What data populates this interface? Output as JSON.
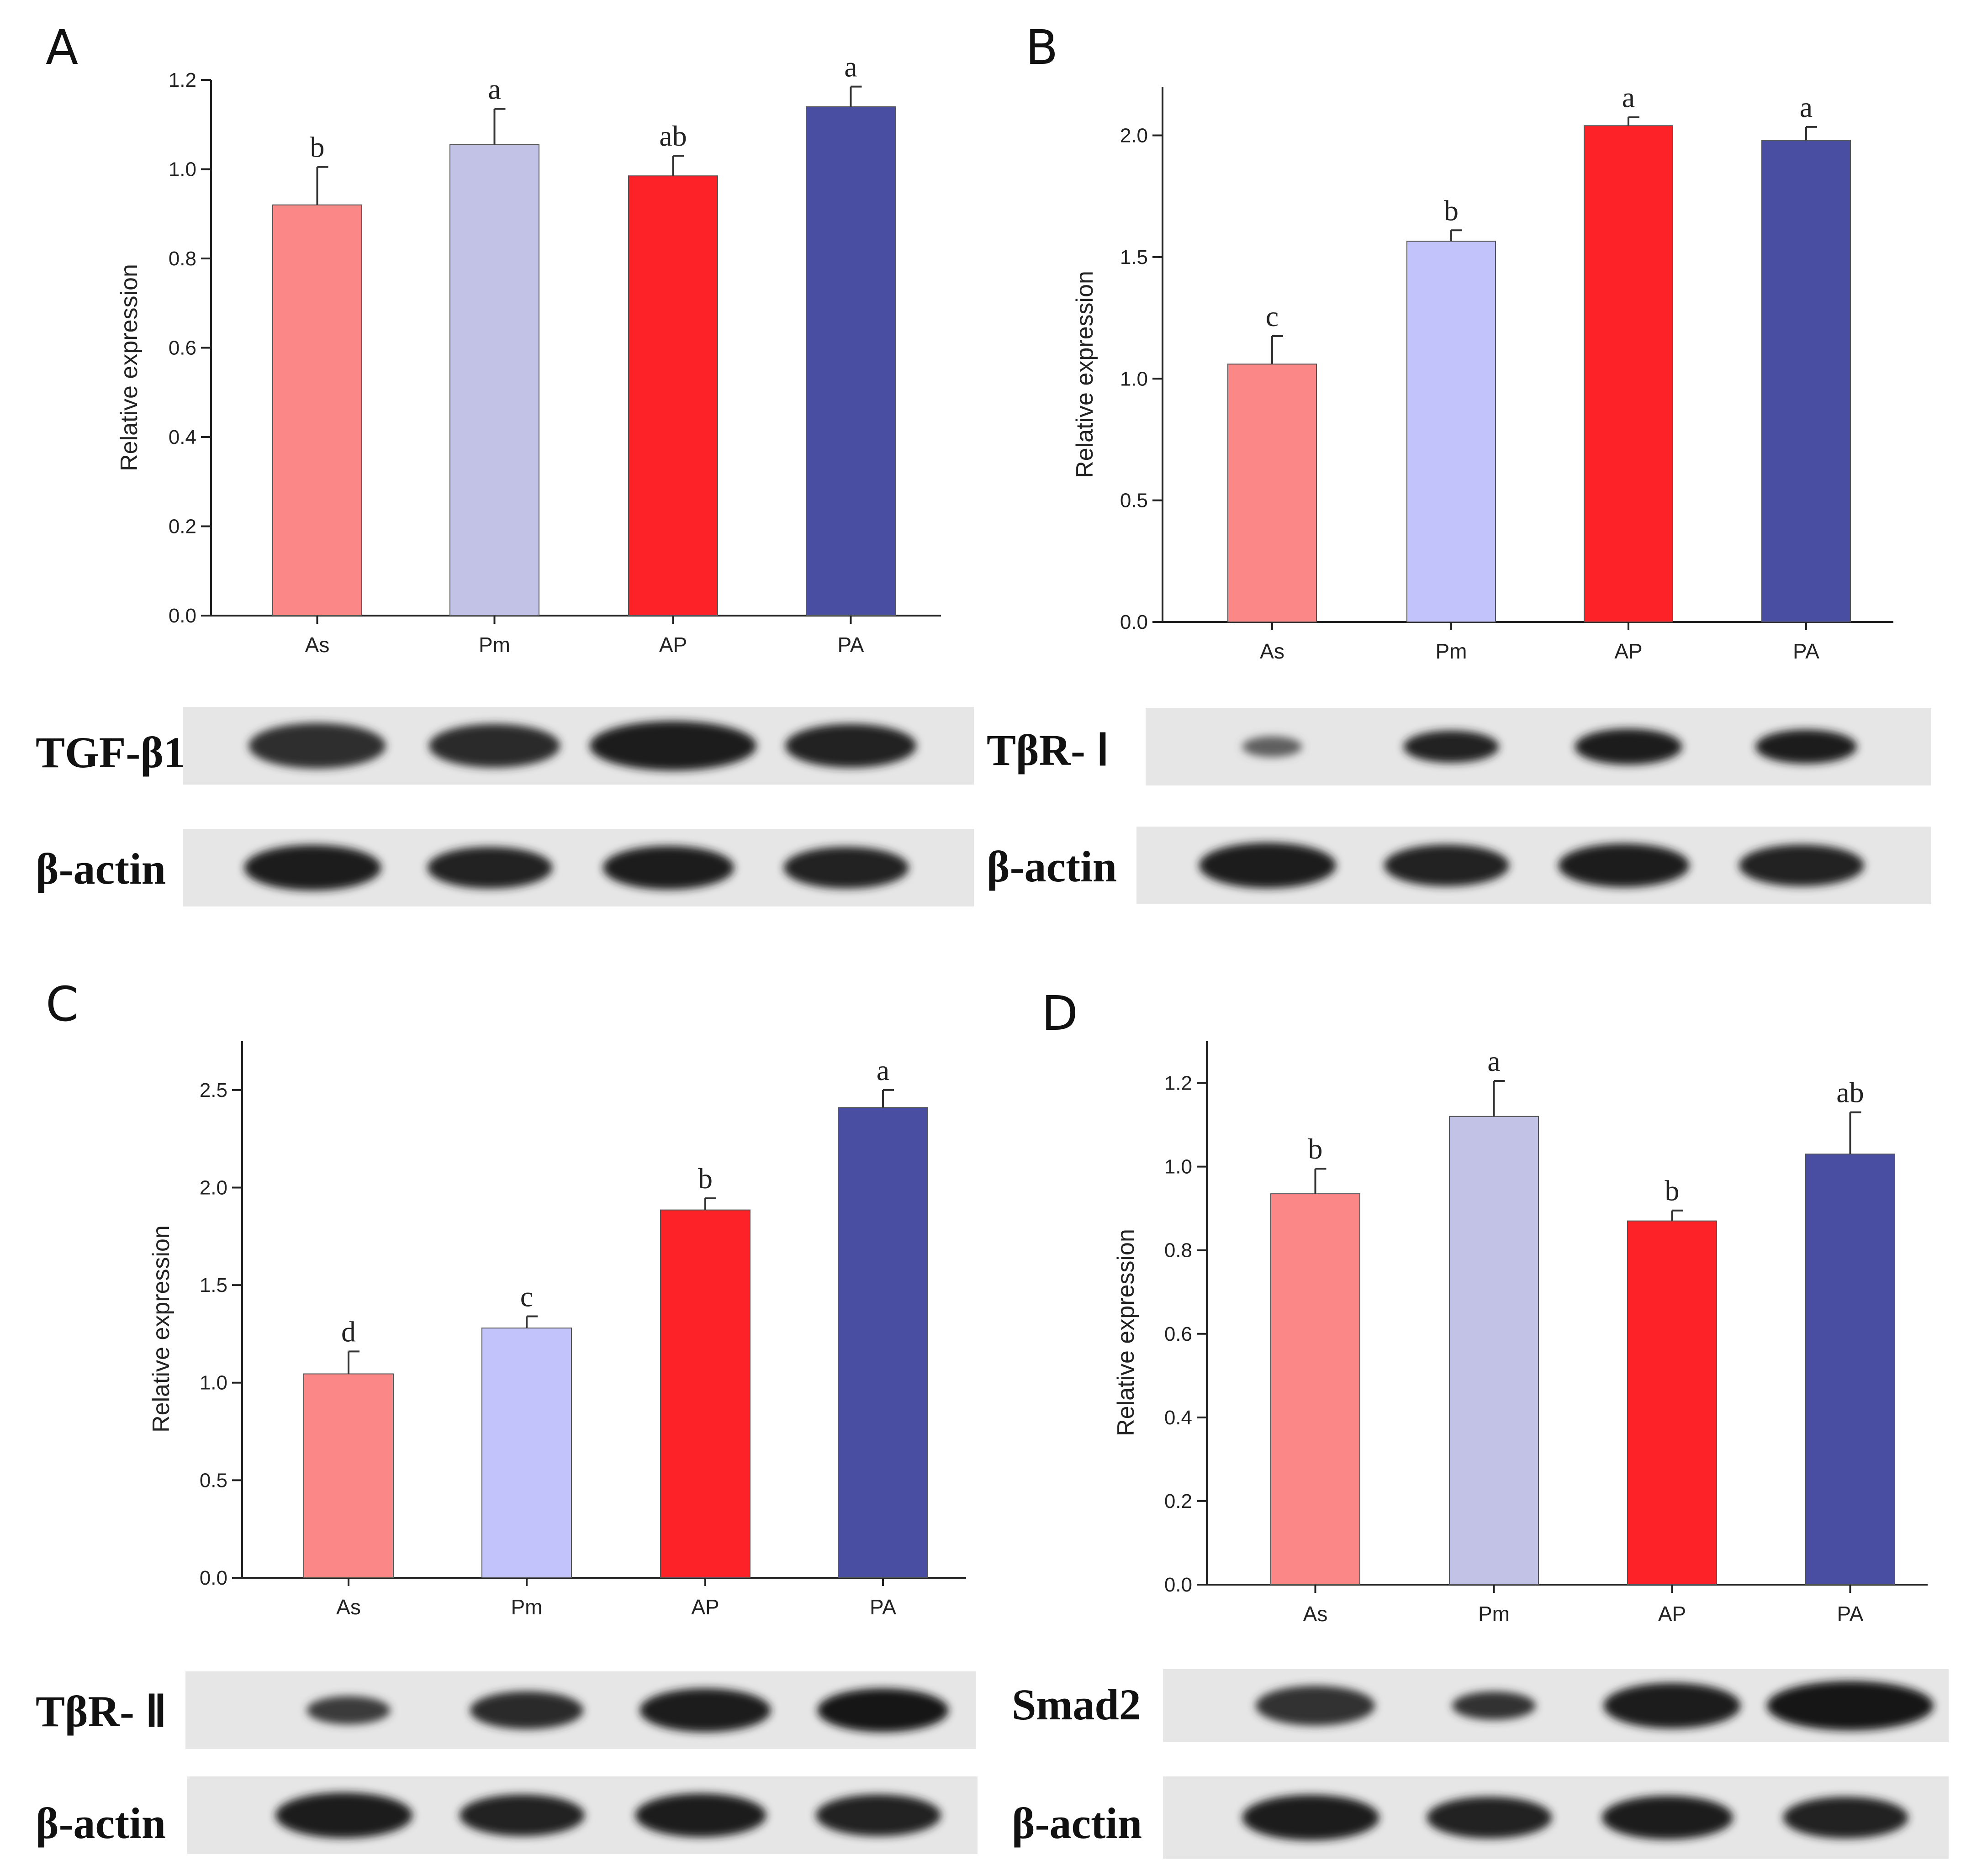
{
  "chart_data": [
    {
      "panel": "A",
      "type": "bar",
      "categories": [
        "As",
        "Pm",
        "AP",
        "PA"
      ],
      "values": [
        0.92,
        1.055,
        0.985,
        1.14
      ],
      "errors": [
        0.085,
        0.08,
        0.045,
        0.045
      ],
      "significance": [
        "b",
        "a",
        "ab",
        "a"
      ],
      "colors": [
        "#fc8787",
        "#c2c2e6",
        "#fc2228",
        "#4a4ea3"
      ],
      "ylabel": "Relative expression",
      "ylim": [
        0,
        1.2
      ],
      "yticks": [
        "0.0",
        "0.2",
        "0.4",
        "0.6",
        "0.8",
        "1.0",
        "1.2"
      ],
      "blot": {
        "target": "TGF-β1",
        "control": "β-actin"
      }
    },
    {
      "panel": "B",
      "type": "bar",
      "categories": [
        "As",
        "Pm",
        "AP",
        "PA"
      ],
      "values": [
        1.06,
        1.565,
        2.04,
        1.98
      ],
      "errors": [
        0.115,
        0.045,
        0.035,
        0.055
      ],
      "significance": [
        "c",
        "b",
        "a",
        "a"
      ],
      "colors": [
        "#fc8787",
        "#c3c3fb",
        "#fc2228",
        "#4a4ea3"
      ],
      "ylabel": "Relative expression",
      "ylim": [
        0,
        2.2
      ],
      "yticks": [
        "0.0",
        "0.5",
        "1.0",
        "1.5",
        "2.0"
      ],
      "blot": {
        "target": "TβR- Ⅰ",
        "control": "β-actin"
      }
    },
    {
      "panel": "C",
      "type": "bar",
      "categories": [
        "As",
        "Pm",
        "AP",
        "PA"
      ],
      "values": [
        1.045,
        1.28,
        1.885,
        2.41
      ],
      "errors": [
        0.115,
        0.06,
        0.06,
        0.09
      ],
      "significance": [
        "d",
        "c",
        "b",
        "a"
      ],
      "colors": [
        "#fc8787",
        "#c3c3fb",
        "#fc2228",
        "#4a4ea3"
      ],
      "ylabel": "Relative expression",
      "ylim": [
        0,
        2.75
      ],
      "yticks": [
        "0.0",
        "0.5",
        "1.0",
        "1.5",
        "2.0",
        "2.5"
      ],
      "blot": {
        "target": "TβR- Ⅱ",
        "control": "β-actin"
      }
    },
    {
      "panel": "D",
      "type": "bar",
      "categories": [
        "As",
        "Pm",
        "AP",
        "PA"
      ],
      "values": [
        0.935,
        1.12,
        0.87,
        1.03
      ],
      "errors": [
        0.06,
        0.085,
        0.025,
        0.1
      ],
      "significance": [
        "b",
        "a",
        "b",
        "ab"
      ],
      "colors": [
        "#fc8787",
        "#c2c2e6",
        "#fc2228",
        "#4a4ea3"
      ],
      "ylabel": "Relative expression",
      "ylim": [
        0,
        1.3
      ],
      "yticks": [
        "0.0",
        "0.2",
        "0.4",
        "0.6",
        "0.8",
        "1.0",
        "1.2"
      ],
      "blot": {
        "target": "Smad2",
        "control": "β-actin"
      }
    }
  ]
}
